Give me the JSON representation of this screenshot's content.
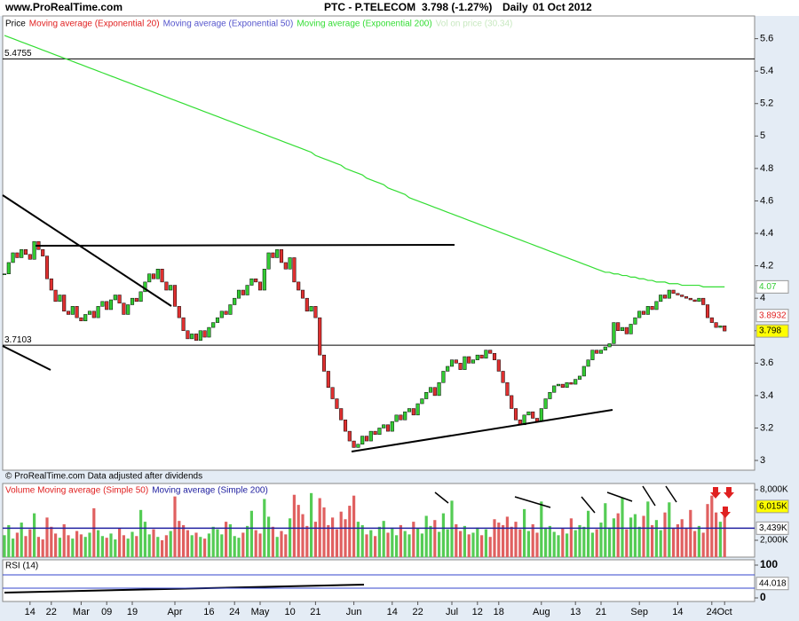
{
  "header": {
    "site": "www.ProRealTime.com",
    "title": "PTC - P.TELECOM",
    "quote": "3.798 (-1.27%)",
    "period": "Daily",
    "date": "01 Oct 2012"
  },
  "chart_data": [
    {
      "type": "candle",
      "title": "Price",
      "indicators": [
        {
          "name": "Moving average (Exponential 20)",
          "color": "#e02020"
        },
        {
          "name": "Moving average (Exponential 50)",
          "color": "#5555cc"
        },
        {
          "name": "Vol on price (30.34)",
          "color": "#c8e8c0"
        }
      ],
      "note": "© ProRealTime.com  Data adjusted after dividends",
      "categories": [
        null,
        null,
        null,
        null,
        null,
        null,
        "14",
        null,
        null,
        null,
        null,
        "22",
        null,
        null,
        null,
        null,
        null,
        null,
        "Mar",
        null,
        null,
        null,
        null,
        null,
        "09",
        null,
        null,
        null,
        null,
        null,
        "19",
        null,
        null,
        null,
        null,
        null,
        null,
        null,
        null,
        null,
        "Apr",
        null,
        null,
        null,
        null,
        null,
        null,
        null,
        "16",
        null,
        null,
        null,
        null,
        null,
        "24",
        null,
        null,
        null,
        null,
        null,
        "May",
        null,
        null,
        null,
        null,
        null,
        null,
        "10",
        null,
        null,
        null,
        null,
        null,
        "21",
        null,
        null,
        null,
        null,
        null,
        null,
        null,
        null,
        "Jun",
        null,
        null,
        null,
        null,
        null,
        null,
        null,
        null,
        "14",
        null,
        null,
        null,
        null,
        null,
        "22",
        null,
        null,
        null,
        null,
        null,
        null,
        null,
        "Jul",
        null,
        null,
        null,
        null,
        null,
        "12",
        null,
        null,
        null,
        null,
        "18",
        null,
        null,
        null,
        null,
        null,
        null,
        null,
        null,
        null,
        "Aug",
        null,
        null,
        null,
        null,
        null,
        null,
        null,
        "13",
        null,
        null,
        null,
        null,
        null,
        "21",
        null,
        null,
        null,
        null,
        null,
        null,
        null,
        null,
        "Sep",
        null,
        null,
        null,
        null,
        null,
        null,
        null,
        null,
        "14",
        null,
        null,
        null,
        null,
        null,
        null,
        null,
        "24",
        null,
        null,
        "Oct"
      ],
      "series": [
        {
          "name": "Price",
          "color": "#33cc33",
          "down_color": "#e03030",
          "values": [
            4.15,
            4.22,
            4.28,
            4.25,
            4.3,
            4.27,
            4.24,
            4.35,
            4.3,
            4.26,
            4.12,
            4.05,
            3.98,
            4.02,
            3.92,
            3.9,
            3.95,
            3.88,
            3.86,
            3.9,
            3.92,
            3.88,
            3.95,
            3.98,
            3.93,
            3.99,
            4.02,
            3.97,
            3.9,
            3.96,
            4.0,
            3.98,
            4.04,
            4.1,
            4.15,
            4.12,
            4.18,
            4.1,
            4.05,
            4.08,
            3.95,
            3.88,
            3.8,
            3.75,
            3.78,
            3.74,
            3.8,
            3.76,
            3.82,
            3.85,
            3.88,
            3.92,
            3.9,
            3.96,
            4.0,
            4.05,
            4.02,
            4.08,
            4.12,
            4.1,
            4.05,
            4.18,
            4.28,
            4.25,
            4.3,
            4.22,
            4.18,
            4.25,
            4.1,
            4.05,
            4.0,
            3.92,
            3.95,
            3.88,
            3.65,
            3.55,
            3.45,
            3.38,
            3.32,
            3.25,
            3.18,
            3.12,
            3.08,
            3.1,
            3.15,
            3.12,
            3.18,
            3.16,
            3.2,
            3.22,
            3.18,
            3.24,
            3.28,
            3.25,
            3.3,
            3.32,
            3.28,
            3.35,
            3.38,
            3.42,
            3.45,
            3.4,
            3.48,
            3.55,
            3.58,
            3.62,
            3.6,
            3.56,
            3.64,
            3.6,
            3.62,
            3.65,
            3.63,
            3.68,
            3.66,
            3.62,
            3.55,
            3.48,
            3.4,
            3.32,
            3.25,
            3.22,
            3.28,
            3.3,
            3.26,
            3.24,
            3.32,
            3.38,
            3.42,
            3.46,
            3.47,
            3.45,
            3.48,
            3.47,
            3.5,
            3.52,
            3.58,
            3.62,
            3.68,
            3.66,
            3.68,
            3.7,
            3.72,
            3.85,
            3.8,
            3.82,
            3.78,
            3.84,
            3.88,
            3.92,
            3.9,
            3.95,
            3.93,
            3.98,
            4.02,
            4.0,
            4.05,
            4.03,
            4.02,
            4.01,
            4.0,
            3.99,
            3.98,
            4.0,
            3.96,
            3.88,
            3.85,
            3.82,
            3.83,
            3.798
          ]
        },
        {
          "name": "Moving average (Exponential 200)",
          "color": "#33dd33",
          "values": [
            5.62,
            5.61,
            5.6,
            5.59,
            5.58,
            5.57,
            5.56,
            5.55,
            5.54,
            5.53,
            5.52,
            5.51,
            5.5,
            5.49,
            5.48,
            5.47,
            5.46,
            5.45,
            5.44,
            5.43,
            5.42,
            5.41,
            5.4,
            5.39,
            5.38,
            5.37,
            5.36,
            5.35,
            5.34,
            5.33,
            5.32,
            5.31,
            5.3,
            5.29,
            5.28,
            5.27,
            5.26,
            5.25,
            5.24,
            5.23,
            5.22,
            5.21,
            5.2,
            5.19,
            5.18,
            5.17,
            5.16,
            5.15,
            5.14,
            5.13,
            5.12,
            5.11,
            5.1,
            5.09,
            5.08,
            5.07,
            5.06,
            5.05,
            5.04,
            5.03,
            5.02,
            5.01,
            5.0,
            4.99,
            4.98,
            4.97,
            4.96,
            4.95,
            4.94,
            4.93,
            4.92,
            4.91,
            4.9,
            4.88,
            4.87,
            4.86,
            4.85,
            4.84,
            4.83,
            4.82,
            4.8,
            4.79,
            4.78,
            4.77,
            4.76,
            4.74,
            4.73,
            4.72,
            4.71,
            4.7,
            4.68,
            4.67,
            4.66,
            4.65,
            4.64,
            4.62,
            4.61,
            4.6,
            4.59,
            4.58,
            4.57,
            4.56,
            4.55,
            4.54,
            4.53,
            4.52,
            4.51,
            4.5,
            4.49,
            4.48,
            4.47,
            4.46,
            4.45,
            4.44,
            4.43,
            4.42,
            4.41,
            4.4,
            4.39,
            4.38,
            4.37,
            4.36,
            4.35,
            4.34,
            4.33,
            4.32,
            4.31,
            4.3,
            4.29,
            4.28,
            4.27,
            4.26,
            4.25,
            4.24,
            4.23,
            4.22,
            4.21,
            4.2,
            4.19,
            4.18,
            4.17,
            4.16,
            4.16,
            4.15,
            4.15,
            4.14,
            4.14,
            4.13,
            4.13,
            4.12,
            4.12,
            4.11,
            4.11,
            4.1,
            4.1,
            4.1,
            4.09,
            4.09,
            4.09,
            4.08,
            4.08,
            4.08,
            4.08,
            4.08,
            4.07,
            4.07,
            4.07,
            4.07,
            4.07,
            4.07
          ]
        }
      ],
      "levels": [
        5.4755,
        3.7103
      ],
      "last_values": [
        {
          "value": 4.07,
          "color": "#33cc33",
          "bg": "#ffffff"
        },
        {
          "value": 3.8932,
          "color": "#e02020",
          "bg": "#ffffff"
        },
        {
          "value": 3.798,
          "color": "#000000",
          "bg": "#ffff00"
        }
      ],
      "ylim": [
        2.94,
        5.74
      ],
      "yticks": [
        3,
        3.2,
        3.4,
        3.6,
        3.8,
        4,
        4.2,
        4.4,
        4.6,
        4.8,
        5,
        5.2,
        5.4,
        5.6
      ]
    },
    {
      "type": "bar",
      "title": "Volume Moving average (Simple 50)",
      "title_color": "#e02020",
      "indicators": [
        {
          "name": "Moving average (Simple 200)",
          "color": "#2020a0"
        }
      ],
      "values": [
        2600,
        3800,
        2200,
        2900,
        4100,
        2500,
        3300,
        5200,
        2400,
        2100,
        4700,
        3600,
        2800,
        2300,
        3900,
        2600,
        2200,
        3100,
        2700,
        2400,
        2900,
        5800,
        3200,
        2500,
        2300,
        2800,
        2100,
        3400,
        2600,
        2200,
        3000,
        2500,
        5600,
        4200,
        2700,
        3300,
        2400,
        2000,
        2600,
        3100,
        7200,
        4300,
        3800,
        3200,
        2600,
        2900,
        2400,
        2200,
        2800,
        3600,
        3300,
        2700,
        4200,
        3900,
        2500,
        2300,
        2900,
        3700,
        5500,
        3200,
        2800,
        6900,
        4800,
        3600,
        2400,
        3100,
        2700,
        4600,
        7400,
        6200,
        5100,
        3700,
        7600,
        4200,
        7000,
        5900,
        3800,
        4700,
        3300,
        5400,
        4500,
        6100,
        7300,
        4200,
        3800,
        2700,
        3200,
        2500,
        3600,
        4300,
        2900,
        3500,
        2600,
        3800,
        3100,
        2700,
        4200,
        3400,
        2800,
        4900,
        3700,
        4400,
        3000,
        5200,
        3300,
        6700,
        3900,
        3100,
        3700,
        2700,
        2900,
        3500,
        2600,
        3300,
        2400,
        4500,
        4100,
        3800,
        4800,
        3600,
        4200,
        3300,
        5700,
        3100,
        3900,
        2900,
        6600,
        3500,
        3700,
        3000,
        2600,
        3400,
        2800,
        4600,
        3200,
        3800,
        3600,
        5500,
        2900,
        3300,
        4100,
        6400,
        3500,
        4600,
        5200,
        7100,
        3300,
        4700,
        5100,
        3600,
        4900,
        6600,
        3800,
        4400,
        3200,
        5300,
        6500,
        3400,
        3900,
        4500,
        3400,
        5600,
        3100,
        3700,
        2900,
        6300,
        7300,
        5300,
        4200,
        6015
      ],
      "last_values": [
        {
          "value": 6015,
          "label": "6,015K",
          "bg": "#ffff00"
        },
        {
          "value": 3439,
          "label": "3,439K",
          "bg": "#ffffff"
        }
      ],
      "ylim": [
        0,
        8740
      ],
      "yticks": [
        {
          "value": 8000,
          "label": "8,000K"
        },
        {
          "value": 2000,
          "label": "2,000K"
        }
      ]
    },
    {
      "type": "rsi",
      "title": "RSI (14)",
      "last_values": [
        {
          "value": 44.018,
          "bg": "#ffffff"
        }
      ],
      "ylim": [
        -10.8,
        116.2
      ],
      "yticks": [
        0,
        100
      ]
    }
  ]
}
